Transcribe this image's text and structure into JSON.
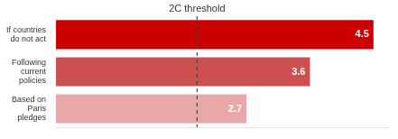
{
  "chart_data": {
    "type": "bar",
    "orientation": "horizontal",
    "categories": [
      "If countries\ndo not act",
      "Following\ncurrent\npolicies",
      "Based on\nParis\npledges"
    ],
    "values": [
      4.5,
      3.6,
      2.7
    ],
    "colors": [
      "#cc0000",
      "#cd5050",
      "#e8a8a8"
    ],
    "data_labels": true,
    "xlim": [
      0,
      4.72
    ],
    "grid": false,
    "tick_labels": "y",
    "annotations": [
      {
        "text": "2C threshold",
        "x": 2.0,
        "line_style": "dashed",
        "color": "#444444"
      }
    ]
  }
}
